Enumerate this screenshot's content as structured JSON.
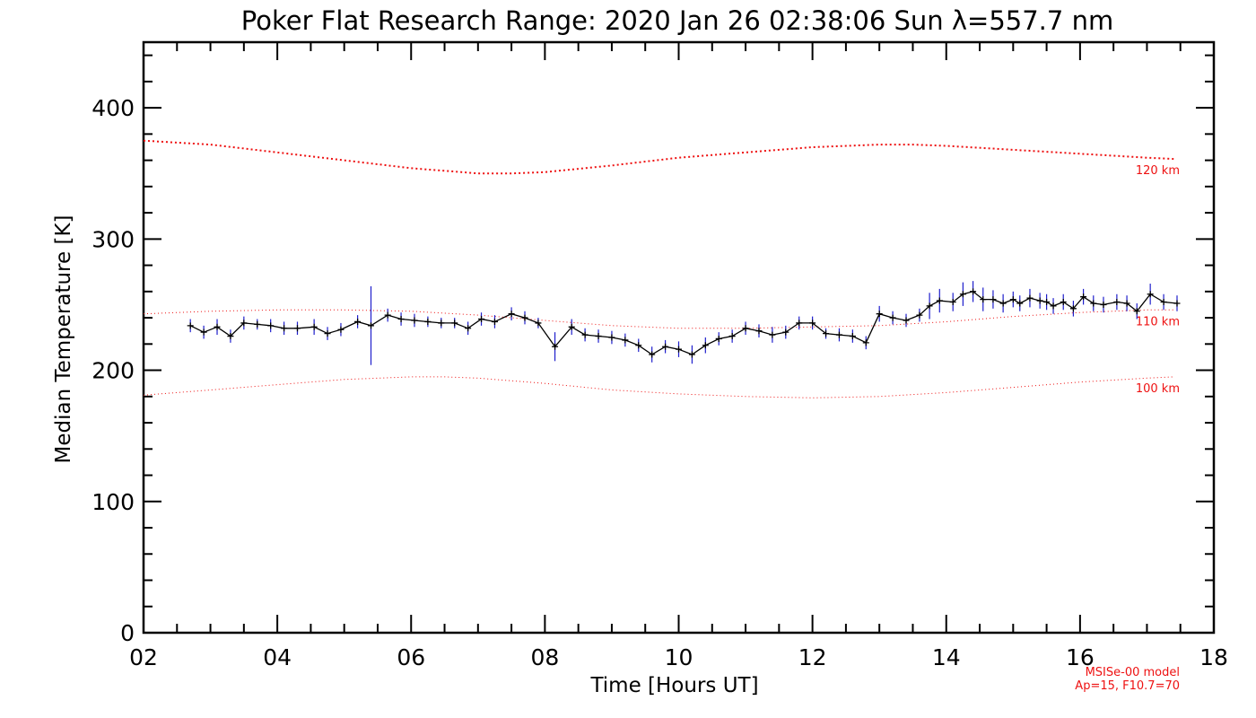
{
  "colors": {
    "background": "#ffffff",
    "axis": "#000000",
    "model_curve": "#ee1111",
    "measurement_line": "#000000",
    "error_bar": "#1f1fcc"
  },
  "chart_data": {
    "type": "line",
    "title": "Poker Flat Research Range: 2020 Jan 26 02:38:06 Sun λ=557.7 nm",
    "xlabel": "Time [Hours UT]",
    "ylabel": "Median Temperature [K]",
    "xlim": [
      2,
      18
    ],
    "ylim": [
      0,
      450
    ],
    "x_ticks": [
      {
        "value": 2,
        "label": "02"
      },
      {
        "value": 4,
        "label": "04"
      },
      {
        "value": 6,
        "label": "06"
      },
      {
        "value": 8,
        "label": "08"
      },
      {
        "value": 10,
        "label": "10"
      },
      {
        "value": 12,
        "label": "12"
      },
      {
        "value": 14,
        "label": "14"
      },
      {
        "value": 16,
        "label": "16"
      },
      {
        "value": 18,
        "label": "18"
      }
    ],
    "y_ticks": [
      {
        "value": 0,
        "label": "0"
      },
      {
        "value": 100,
        "label": "100"
      },
      {
        "value": 200,
        "label": "200"
      },
      {
        "value": 300,
        "label": "300"
      },
      {
        "value": 400,
        "label": "400"
      }
    ],
    "grid": false,
    "model_curves": [
      {
        "label": "120 km",
        "style": "dotted",
        "x": [
          2,
          3,
          4,
          5,
          6,
          7,
          7.5,
          8,
          9,
          10,
          11,
          12,
          13,
          13.5,
          14,
          15,
          16,
          17,
          17.4
        ],
        "y": [
          375,
          372,
          366,
          360,
          354,
          350,
          350,
          351,
          356,
          362,
          366,
          370,
          372,
          372,
          371,
          368,
          365,
          362,
          361
        ]
      },
      {
        "label": "110 km",
        "style": "dotted",
        "x": [
          2,
          3,
          4,
          5,
          6,
          7,
          8,
          9,
          10,
          11,
          12,
          13,
          14,
          15,
          16,
          17,
          17.4
        ],
        "y": [
          243,
          245,
          246,
          246,
          245,
          242,
          238,
          234,
          232,
          232,
          233,
          234,
          237,
          241,
          244,
          246,
          246
        ]
      },
      {
        "label": "100 km",
        "style": "dotted",
        "x": [
          2,
          3,
          4,
          5,
          6,
          6.5,
          7,
          8,
          9,
          10,
          11,
          12,
          13,
          14,
          15,
          16,
          17,
          17.4
        ],
        "y": [
          181,
          185,
          189,
          193,
          195,
          195,
          194,
          190,
          185,
          182,
          180,
          179,
          180,
          183,
          187,
          191,
          194,
          195
        ]
      }
    ],
    "series": [
      {
        "x": [
          2.7,
          2.9,
          3.1,
          3.3,
          3.5,
          3.7,
          3.9,
          4.1,
          4.3,
          4.55,
          4.75,
          4.95,
          5.2,
          5.4,
          5.65,
          5.85,
          6.05,
          6.25,
          6.45,
          6.65,
          6.85,
          7.05,
          7.25,
          7.5,
          7.7,
          7.9,
          8.15,
          8.4,
          8.6,
          8.8,
          9.0,
          9.2,
          9.4,
          9.6,
          9.8,
          10.0,
          10.2,
          10.4,
          10.6,
          10.8,
          11.0,
          11.2,
          11.4,
          11.6,
          11.8,
          12.0,
          12.2,
          12.4,
          12.6,
          12.8,
          13.0,
          13.2,
          13.4,
          13.6,
          13.75,
          13.9,
          14.1,
          14.25,
          14.4,
          14.55,
          14.7,
          14.85,
          15.0,
          15.1,
          15.25,
          15.4,
          15.5,
          15.6,
          15.75,
          15.9,
          16.05,
          16.2,
          16.35,
          16.55,
          16.7,
          16.85,
          17.05,
          17.25,
          17.45
        ],
        "y": [
          234,
          229,
          233,
          226,
          236,
          235,
          234,
          232,
          232,
          233,
          228,
          231,
          237,
          234,
          242,
          239,
          238,
          237,
          236,
          236,
          232,
          239,
          237,
          243,
          240,
          236,
          218,
          233,
          227,
          226,
          225,
          223,
          219,
          212,
          218,
          216,
          212,
          219,
          224,
          226,
          232,
          230,
          227,
          229,
          236,
          236,
          228,
          227,
          226,
          221,
          243,
          240,
          238,
          242,
          249,
          253,
          252,
          258,
          260,
          254,
          254,
          251,
          254,
          251,
          255,
          253,
          252,
          249,
          252,
          247,
          256,
          251,
          250,
          252,
          251,
          245,
          258,
          252,
          251
        ],
        "error": [
          5,
          5,
          6,
          5,
          5,
          4,
          5,
          5,
          5,
          6,
          5,
          5,
          5,
          30,
          5,
          5,
          5,
          4,
          4,
          4,
          5,
          5,
          5,
          5,
          5,
          4,
          11,
          6,
          5,
          5,
          5,
          5,
          5,
          6,
          5,
          6,
          7,
          6,
          5,
          5,
          5,
          5,
          6,
          5,
          5,
          5,
          4,
          5,
          5,
          5,
          6,
          5,
          5,
          5,
          10,
          9,
          7,
          9,
          8,
          9,
          7,
          7,
          6,
          6,
          7,
          6,
          6,
          6,
          6,
          6,
          6,
          6,
          6,
          6,
          6,
          6,
          8,
          6,
          6
        ]
      }
    ]
  },
  "footnote": {
    "line1": "MSISe-00 model",
    "line2": "Ap=15, F10.7=70"
  }
}
